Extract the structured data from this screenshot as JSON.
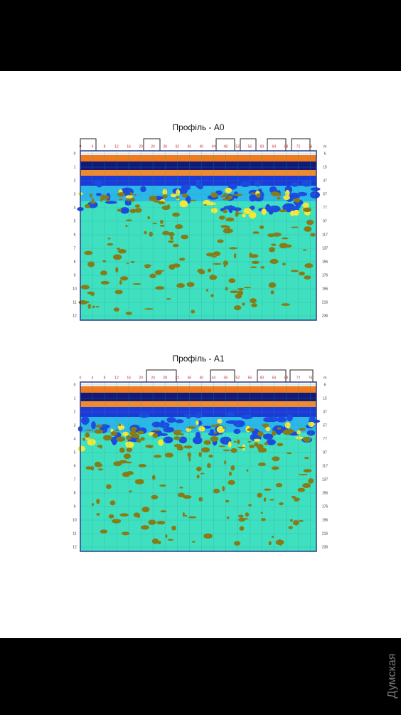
{
  "figures": [
    {
      "title": "Профіль - А0",
      "top_unit": "m",
      "top_ticks": [
        "0",
        "4",
        "8",
        "12",
        "16",
        "20",
        "24",
        "28",
        "32",
        "36",
        "40",
        "44",
        "48",
        "52",
        "56",
        "60",
        "64",
        "68",
        "72",
        "76"
      ],
      "left_ticks": [
        "0",
        "1",
        "2",
        "3",
        "4",
        "5",
        "6",
        "7",
        "8",
        "9",
        "10",
        "11",
        "12"
      ],
      "right_ticks": [
        "6",
        "15",
        "37",
        "57",
        "77",
        "97",
        "117",
        "137",
        "156",
        "176",
        "196",
        "216",
        "236"
      ]
    },
    {
      "title": "Профіль - А1",
      "top_unit": "m",
      "top_ticks": [
        "0",
        "4",
        "8",
        "12",
        "16",
        "20",
        "24",
        "28",
        "32",
        "36",
        "40",
        "44",
        "48",
        "52",
        "56",
        "60",
        "64",
        "68",
        "72",
        "76"
      ],
      "left_ticks": [
        "0",
        "1",
        "2",
        "3",
        "4",
        "5",
        "6",
        "7",
        "8",
        "9",
        "10",
        "11",
        "12"
      ],
      "right_ticks": [
        "6",
        "15",
        "37",
        "57",
        "77",
        "97",
        "117",
        "137",
        "156",
        "176",
        "196",
        "216",
        "236"
      ]
    }
  ],
  "watermark": "Думская"
}
